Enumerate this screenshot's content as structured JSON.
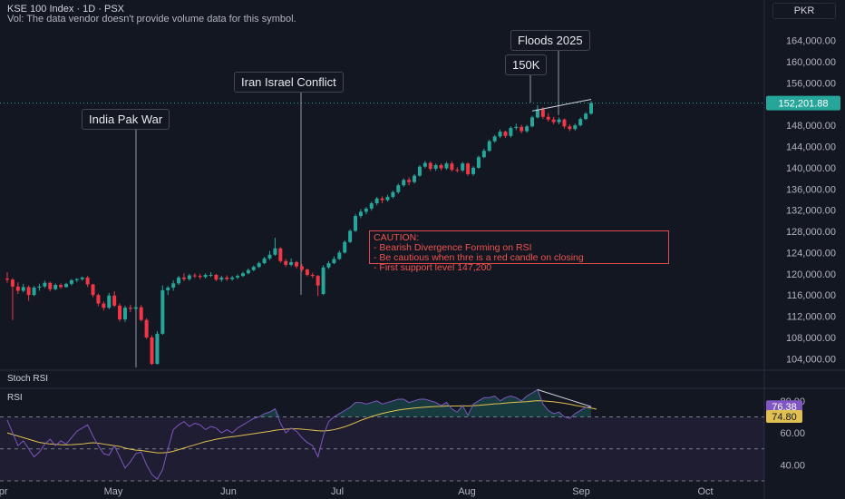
{
  "header": {
    "title": "KSE 100 Index · 1D · PSX",
    "volume_note": "Vol: The data vendor doesn't provide volume data for this symbol.",
    "currency": "PKR"
  },
  "annotations": {
    "india_pak": "India Pak War",
    "iran_israel": "Iran Israel Conflict",
    "floods": "Floods 2025",
    "k150": "150K",
    "caution_title": "CAUTION:",
    "caution_line1": "- Bearish Divergence Forming on RSI",
    "caution_line2": "- Be cautious when thre is a red candle on closing",
    "caution_line3": "- First support level 147,200"
  },
  "indicators": {
    "stoch_label": "Stoch RSI",
    "rsi_label": "RSI"
  },
  "colors": {
    "up": "#26a69a",
    "down": "#f23645",
    "rsi": "#7e57c2",
    "rsi_ma": "#e0c050",
    "background": "#131722"
  },
  "chart_data": {
    "type": "candlestick",
    "symbol": "KSE 100 Index",
    "interval": "1D",
    "exchange": "PSX",
    "price_axis_ticks": [
      104000,
      108000,
      112000,
      116000,
      120000,
      124000,
      128000,
      132000,
      136000,
      140000,
      144000,
      148000,
      152000,
      156000,
      160000,
      164000
    ],
    "price_axis_tick_labels": [
      "104,000.00",
      "108,000.00",
      "112,000.00",
      "116,000.00",
      "120,000.00",
      "124,000.00",
      "128,000.00",
      "132,000.00",
      "136,000.00",
      "140,000.00",
      "144,000.00",
      "148,000.00",
      "152,000.00",
      "156,000.00",
      "160,000.00",
      "164,000.00"
    ],
    "ylim": [
      102000,
      166500
    ],
    "last_price": 152201.88,
    "last_price_label": "152,201.88",
    "x_axis_labels": [
      "Apr",
      "May",
      "Jun",
      "Jul",
      "Aug",
      "Sep",
      "Oct"
    ],
    "candles": [
      {
        "o": 119100,
        "h": 120300,
        "c": 118900,
        "l": 118300
      },
      {
        "o": 118900,
        "h": 119200,
        "c": 117600,
        "l": 111300
      },
      {
        "o": 117600,
        "h": 118400,
        "c": 116800,
        "l": 116200
      },
      {
        "o": 116800,
        "h": 118100,
        "c": 117500,
        "l": 116500
      },
      {
        "o": 117500,
        "h": 117800,
        "c": 116000,
        "l": 114900
      },
      {
        "o": 116000,
        "h": 117700,
        "c": 117400,
        "l": 115800
      },
      {
        "o": 117400,
        "h": 118100,
        "c": 117600,
        "l": 116800
      },
      {
        "o": 117600,
        "h": 118700,
        "c": 118300,
        "l": 117300
      },
      {
        "o": 118300,
        "h": 118500,
        "c": 117100,
        "l": 116700
      },
      {
        "o": 117100,
        "h": 118200,
        "c": 117900,
        "l": 116900
      },
      {
        "o": 117900,
        "h": 118200,
        "c": 117500,
        "l": 117200
      },
      {
        "o": 117500,
        "h": 118300,
        "c": 118100,
        "l": 117400
      },
      {
        "o": 118100,
        "h": 119000,
        "c": 118800,
        "l": 117800
      },
      {
        "o": 118800,
        "h": 119200,
        "c": 119000,
        "l": 118400
      },
      {
        "o": 119000,
        "h": 119500,
        "c": 119300,
        "l": 118700
      },
      {
        "o": 119300,
        "h": 119600,
        "c": 118000,
        "l": 117500
      },
      {
        "o": 118000,
        "h": 118100,
        "c": 116000,
        "l": 115600
      },
      {
        "o": 116000,
        "h": 116300,
        "c": 114400,
        "l": 113900
      },
      {
        "o": 114400,
        "h": 114800,
        "c": 113600,
        "l": 113100
      },
      {
        "o": 113600,
        "h": 116400,
        "c": 115900,
        "l": 113300
      },
      {
        "o": 115900,
        "h": 116700,
        "c": 114000,
        "l": 113700
      },
      {
        "o": 114000,
        "h": 114400,
        "c": 111400,
        "l": 111000
      },
      {
        "o": 111400,
        "h": 114000,
        "c": 113600,
        "l": 110900
      },
      {
        "o": 113600,
        "h": 114200,
        "c": 113400,
        "l": 112800
      },
      {
        "o": 113400,
        "h": 114100,
        "c": 113700,
        "l": 113000
      },
      {
        "o": 113700,
        "h": 114100,
        "c": 111300,
        "l": 111000
      },
      {
        "o": 111300,
        "h": 111600,
        "c": 108000,
        "l": 107700
      },
      {
        "o": 108000,
        "h": 108400,
        "c": 103000,
        "l": 102800
      },
      {
        "o": 103000,
        "h": 109200,
        "c": 108700,
        "l": 102900
      },
      {
        "o": 108700,
        "h": 117800,
        "c": 116900,
        "l": 108500
      },
      {
        "o": 116900,
        "h": 117700,
        "c": 117400,
        "l": 116000
      },
      {
        "o": 117400,
        "h": 118800,
        "c": 118200,
        "l": 116800
      },
      {
        "o": 118200,
        "h": 119600,
        "c": 119300,
        "l": 117900
      },
      {
        "o": 119300,
        "h": 120100,
        "c": 119000,
        "l": 118600
      },
      {
        "o": 119000,
        "h": 120000,
        "c": 119700,
        "l": 118700
      },
      {
        "o": 119700,
        "h": 120100,
        "c": 119600,
        "l": 119200
      },
      {
        "o": 119600,
        "h": 120000,
        "c": 119400,
        "l": 119000
      },
      {
        "o": 119400,
        "h": 120100,
        "c": 119800,
        "l": 119100
      },
      {
        "o": 119800,
        "h": 120300,
        "c": 119800,
        "l": 119400
      },
      {
        "o": 119800,
        "h": 120000,
        "c": 118900,
        "l": 118600
      },
      {
        "o": 118900,
        "h": 119600,
        "c": 119300,
        "l": 118500
      },
      {
        "o": 119300,
        "h": 119700,
        "c": 119000,
        "l": 118700
      },
      {
        "o": 119000,
        "h": 119600,
        "c": 119300,
        "l": 118700
      },
      {
        "o": 119300,
        "h": 119900,
        "c": 119600,
        "l": 119000
      },
      {
        "o": 119600,
        "h": 120400,
        "c": 120100,
        "l": 119400
      },
      {
        "o": 120100,
        "h": 121000,
        "c": 120700,
        "l": 119900
      },
      {
        "o": 120700,
        "h": 121600,
        "c": 121300,
        "l": 120500
      },
      {
        "o": 121300,
        "h": 122300,
        "c": 122000,
        "l": 121100
      },
      {
        "o": 122000,
        "h": 123200,
        "c": 122900,
        "l": 121800
      },
      {
        "o": 122900,
        "h": 124300,
        "c": 123600,
        "l": 122600
      },
      {
        "o": 123600,
        "h": 126800,
        "c": 124800,
        "l": 123400
      },
      {
        "o": 124800,
        "h": 125000,
        "c": 122400,
        "l": 122100
      },
      {
        "o": 122400,
        "h": 122800,
        "c": 121700,
        "l": 121300
      },
      {
        "o": 121700,
        "h": 122900,
        "c": 122200,
        "l": 121400
      },
      {
        "o": 122200,
        "h": 122400,
        "c": 121400,
        "l": 121000
      },
      {
        "o": 121400,
        "h": 121800,
        "c": 120800,
        "l": 120400
      },
      {
        "o": 120800,
        "h": 121000,
        "c": 119800,
        "l": 119500
      },
      {
        "o": 119800,
        "h": 120200,
        "c": 119600,
        "l": 119200
      },
      {
        "o": 119600,
        "h": 119800,
        "c": 117800,
        "l": 115800
      },
      {
        "o": 116200,
        "h": 121600,
        "c": 121200,
        "l": 116000
      },
      {
        "o": 121200,
        "h": 122400,
        "c": 122000,
        "l": 120900
      },
      {
        "o": 122000,
        "h": 123300,
        "c": 122800,
        "l": 121800
      },
      {
        "o": 122800,
        "h": 124400,
        "c": 124000,
        "l": 122600
      },
      {
        "o": 124000,
        "h": 126300,
        "c": 126000,
        "l": 123800
      },
      {
        "o": 126000,
        "h": 128400,
        "c": 128100,
        "l": 125800
      },
      {
        "o": 128100,
        "h": 131300,
        "c": 130900,
        "l": 127900
      },
      {
        "o": 130900,
        "h": 132200,
        "c": 131700,
        "l": 130500
      },
      {
        "o": 131700,
        "h": 132600,
        "c": 132300,
        "l": 131200
      },
      {
        "o": 132300,
        "h": 133600,
        "c": 133300,
        "l": 131900
      },
      {
        "o": 133300,
        "h": 134500,
        "c": 134200,
        "l": 132900
      },
      {
        "o": 134200,
        "h": 134600,
        "c": 133900,
        "l": 133300
      },
      {
        "o": 133900,
        "h": 134900,
        "c": 134500,
        "l": 133600
      },
      {
        "o": 134500,
        "h": 135700,
        "c": 135400,
        "l": 134200
      },
      {
        "o": 135400,
        "h": 137000,
        "c": 136700,
        "l": 135100
      },
      {
        "o": 136700,
        "h": 138000,
        "c": 137700,
        "l": 136400
      },
      {
        "o": 137700,
        "h": 138200,
        "c": 137300,
        "l": 136700
      },
      {
        "o": 137300,
        "h": 138800,
        "c": 138500,
        "l": 137000
      },
      {
        "o": 138500,
        "h": 140500,
        "c": 140200,
        "l": 138300
      },
      {
        "o": 140200,
        "h": 141300,
        "c": 140900,
        "l": 139900
      },
      {
        "o": 140900,
        "h": 141200,
        "c": 139800,
        "l": 139400
      },
      {
        "o": 139800,
        "h": 140800,
        "c": 140500,
        "l": 139400
      },
      {
        "o": 140500,
        "h": 140800,
        "c": 139900,
        "l": 139500
      },
      {
        "o": 139900,
        "h": 141100,
        "c": 140800,
        "l": 139600
      },
      {
        "o": 140800,
        "h": 141200,
        "c": 139600,
        "l": 139300
      },
      {
        "o": 139600,
        "h": 140100,
        "c": 139500,
        "l": 139100
      },
      {
        "o": 139500,
        "h": 141100,
        "c": 140800,
        "l": 139200
      },
      {
        "o": 140800,
        "h": 141000,
        "c": 138800,
        "l": 138500
      },
      {
        "o": 138800,
        "h": 140300,
        "c": 140000,
        "l": 138500
      },
      {
        "o": 140000,
        "h": 142300,
        "c": 142000,
        "l": 139800
      },
      {
        "o": 142000,
        "h": 143600,
        "c": 143200,
        "l": 141800
      },
      {
        "o": 143200,
        "h": 145300,
        "c": 145000,
        "l": 143000
      },
      {
        "o": 145000,
        "h": 146200,
        "c": 145900,
        "l": 144700
      },
      {
        "o": 145900,
        "h": 147200,
        "c": 146800,
        "l": 145600
      },
      {
        "o": 146800,
        "h": 147000,
        "c": 146000,
        "l": 145600
      },
      {
        "o": 146000,
        "h": 147800,
        "c": 147500,
        "l": 145700
      },
      {
        "o": 147500,
        "h": 148300,
        "c": 147700,
        "l": 147100
      },
      {
        "o": 147700,
        "h": 148100,
        "c": 146900,
        "l": 146500
      },
      {
        "o": 146900,
        "h": 148100,
        "c": 147800,
        "l": 146600
      },
      {
        "o": 147800,
        "h": 149800,
        "c": 149500,
        "l": 147600
      },
      {
        "o": 149500,
        "h": 151800,
        "c": 151000,
        "l": 149300
      },
      {
        "o": 151000,
        "h": 151400,
        "c": 149600,
        "l": 149200
      },
      {
        "o": 149600,
        "h": 150300,
        "c": 149100,
        "l": 148700
      },
      {
        "o": 149100,
        "h": 149600,
        "c": 148600,
        "l": 148200
      },
      {
        "o": 148600,
        "h": 149500,
        "c": 149100,
        "l": 148200
      },
      {
        "o": 149100,
        "h": 149300,
        "c": 147800,
        "l": 147400
      },
      {
        "o": 147800,
        "h": 148200,
        "c": 147300,
        "l": 146900
      },
      {
        "o": 147300,
        "h": 148300,
        "c": 148000,
        "l": 147000
      },
      {
        "o": 148000,
        "h": 149500,
        "c": 149200,
        "l": 147800
      },
      {
        "o": 149200,
        "h": 150500,
        "c": 150200,
        "l": 149000
      },
      {
        "o": 150200,
        "h": 152600,
        "c": 152200,
        "l": 150000
      }
    ],
    "trendline_price": {
      "from_candle": 98,
      "from_value": 150700,
      "to_candle": 109,
      "to_value": 152900
    },
    "rsi_panel": {
      "ylim": [
        30,
        85
      ],
      "tick_labels": [
        "80.00",
        "60.00",
        "40.00"
      ],
      "tick_values": [
        80,
        60,
        40
      ],
      "bands": [
        70,
        50,
        30
      ],
      "rsi_value": 76.38,
      "rsi_label": "76.38",
      "ma_value": 74.8,
      "ma_label": "74.80",
      "rsi": [
        68,
        60,
        52,
        55,
        50,
        45,
        48,
        53,
        56,
        52,
        55,
        53,
        57,
        61,
        63,
        65,
        58,
        52,
        47,
        46,
        52,
        45,
        38,
        42,
        47,
        48,
        40,
        34,
        31,
        37,
        50,
        62,
        65,
        67,
        64,
        66,
        65,
        62,
        64,
        63,
        60,
        62,
        60,
        63,
        65,
        67,
        69,
        70,
        72,
        73,
        75,
        66,
        60,
        63,
        61,
        57,
        54,
        52,
        45,
        58,
        67,
        70,
        72,
        74,
        76,
        79,
        79,
        78,
        79,
        80,
        78,
        79,
        80,
        81,
        81,
        79,
        80,
        81,
        81,
        80,
        79,
        77,
        79,
        75,
        73,
        77,
        71,
        78,
        80,
        82,
        82,
        83,
        80,
        82,
        83,
        82,
        80,
        83,
        85,
        87,
        78,
        74,
        72,
        73,
        70,
        69,
        72,
        74,
        76,
        76.38
      ],
      "ma": [
        60,
        59,
        58,
        57,
        56,
        55,
        54,
        53.5,
        53,
        52.8,
        52.6,
        52.5,
        52.6,
        52.8,
        53,
        53.5,
        53.8,
        53.5,
        53,
        52.5,
        52,
        51.5,
        50.5,
        49.8,
        49.2,
        49,
        48.5,
        48,
        47.5,
        47.5,
        47.8,
        48.5,
        49.5,
        50.5,
        51.5,
        52.5,
        53.5,
        54.5,
        55.2,
        56,
        56.6,
        57.2,
        57.6,
        58,
        58.5,
        59,
        59.5,
        60,
        60.5,
        61,
        61.6,
        62,
        62.3,
        62.5,
        62.5,
        62.3,
        62,
        61.7,
        61.3,
        61.2,
        61.5,
        62,
        62.8,
        63.8,
        65,
        66.4,
        67.8,
        69,
        70.2,
        71.2,
        72.1,
        72.9,
        73.6,
        74.2,
        74.7,
        75.1,
        75.5,
        75.8,
        76.1,
        76.3,
        76.5,
        76.6,
        76.8,
        76.8,
        76.8,
        76.9,
        76.8,
        77,
        77.2,
        77.5,
        77.8,
        78.1,
        78.3,
        78.6,
        78.9,
        79.1,
        79.3,
        79.5,
        79.8,
        80.1,
        80,
        79.7,
        79.4,
        79,
        78.5,
        77.9,
        77.2,
        76.6,
        76,
        75.5,
        74.8
      ],
      "divergence_line": {
        "from_candle": 99,
        "from_value": 87,
        "to_candle": 109,
        "to_value": 76.4
      }
    }
  }
}
